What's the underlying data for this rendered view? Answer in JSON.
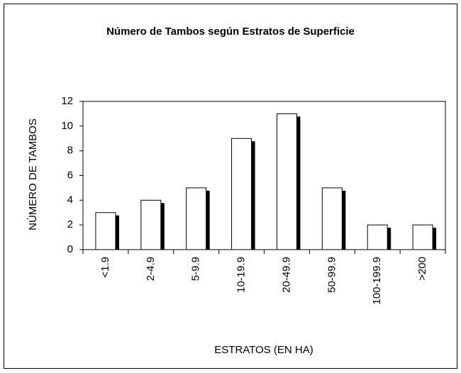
{
  "chart_data": {
    "type": "bar",
    "title": "Número de Tambos según Estratos de Superficie",
    "x_label": "ESTRATOS (EN HA)",
    "y_label": "NÚMERO DE TAMBOS",
    "categories": [
      "<1.9",
      "2-4.9",
      "5-9.9",
      "10-19.9",
      "20-49.9",
      "50-99.9",
      "100-199.9",
      ">200"
    ],
    "values": [
      3,
      4,
      5,
      9,
      11,
      5,
      2,
      2
    ],
    "color": "#ffffff",
    "ylim": [
      0,
      12
    ],
    "yticks": [
      0,
      2,
      4,
      6,
      8,
      10,
      12
    ],
    "grid": false
  }
}
